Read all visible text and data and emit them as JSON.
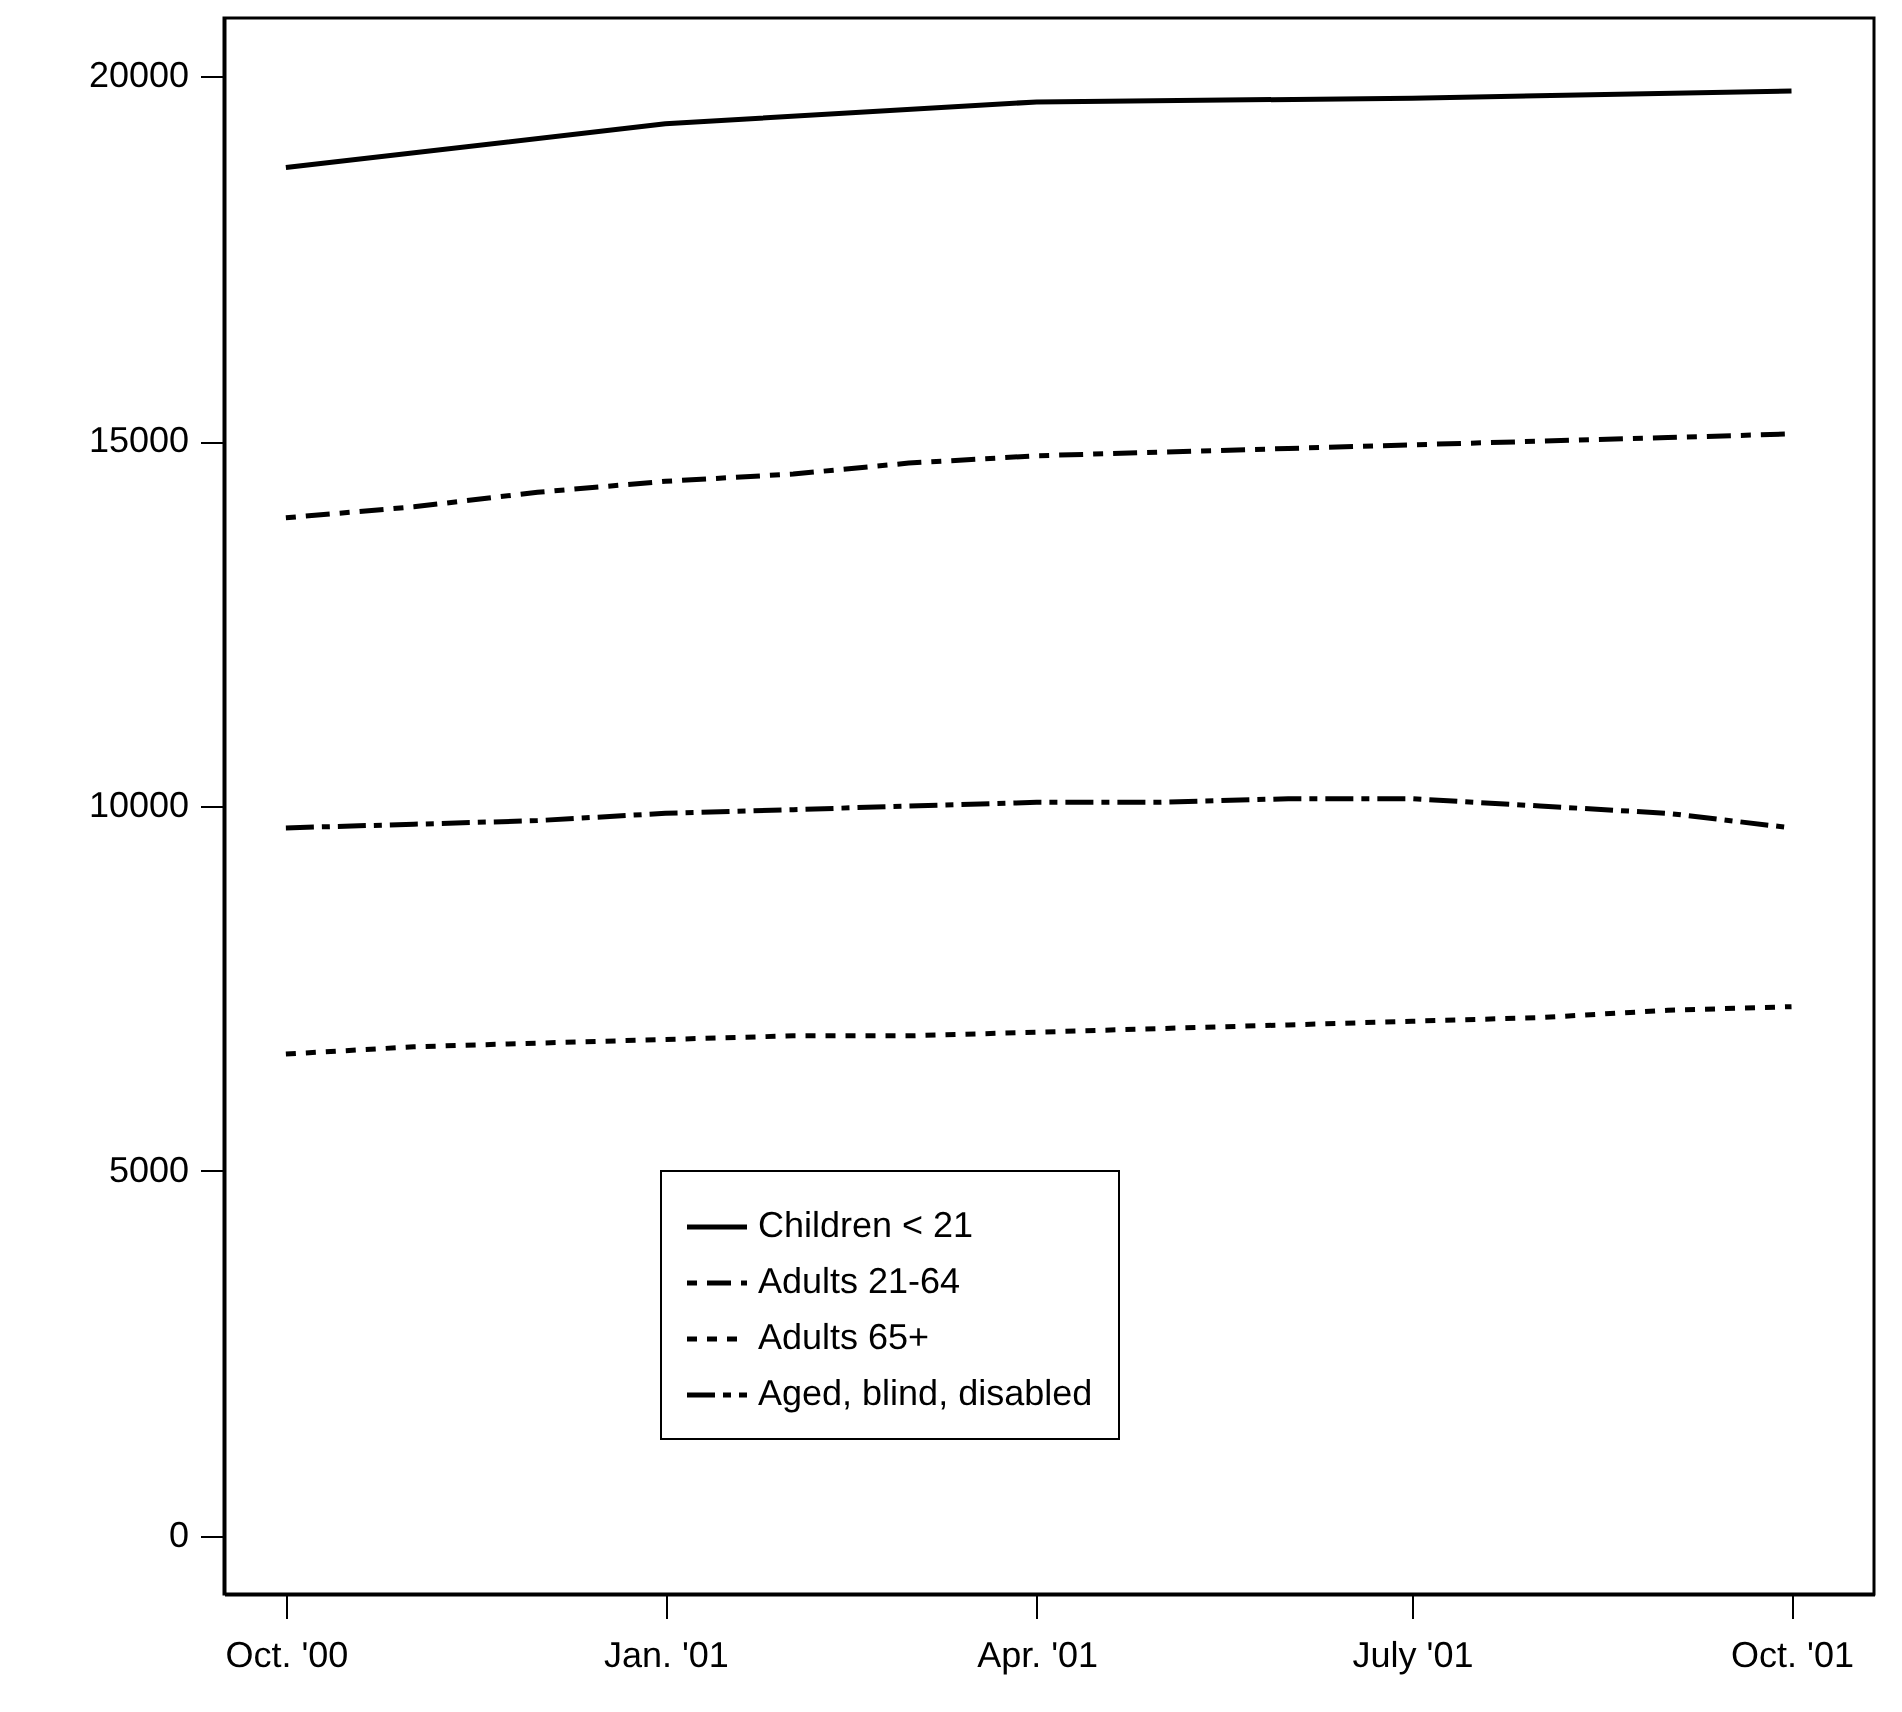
{
  "chart_data": {
    "type": "line",
    "x": [
      "2000-10",
      "2000-11",
      "2000-12",
      "2001-01",
      "2001-02",
      "2001-03",
      "2001-04",
      "2001-05",
      "2001-06",
      "2001-07",
      "2001-08",
      "2001-09",
      "2001-10"
    ],
    "series": [
      {
        "name": "Children < 21",
        "color": "#000000",
        "line_style": "solid",
        "x": [
          "2000-10",
          "2001-01",
          "2001-04",
          "2001-07",
          "2001-10"
        ],
        "values": [
          18750,
          19350,
          19650,
          19700,
          19800
        ]
      },
      {
        "name": "Adults 21-64",
        "color": "#000000",
        "line_style": "dashdot",
        "values": [
          13950,
          14100,
          14300,
          14450,
          14550,
          14700,
          14800,
          14850,
          14900,
          14950,
          15000,
          15050,
          15100
        ]
      },
      {
        "name": "Adults 65+",
        "color": "#000000",
        "line_style": "dotted",
        "values": [
          6600,
          6700,
          6750,
          6800,
          6850,
          6850,
          6900,
          6950,
          7000,
          7050,
          7100,
          7200,
          7250
        ]
      },
      {
        "name": "Aged, blind, disabled",
        "color": "#000000",
        "line_style": "dashed",
        "values": [
          9700,
          9750,
          9800,
          9900,
          9950,
          10000,
          10050,
          10050,
          10100,
          10100,
          10000,
          9900,
          9700
        ]
      }
    ],
    "xlim": [
      "2000-09-16",
      "2001-10-21"
    ],
    "xticks": [
      {
        "value": "2000-10",
        "label": "Oct. '00"
      },
      {
        "value": "2001-01",
        "label": "Jan. '01"
      },
      {
        "value": "2001-04",
        "label": "Apr. '01"
      },
      {
        "value": "2001-07",
        "label": "July '01"
      },
      {
        "value": "2001-10",
        "label": "Oct. '01"
      }
    ],
    "ylim": [
      -800,
      20800
    ],
    "yticks": [
      0,
      5000,
      10000,
      15000,
      20000
    ],
    "grid": false,
    "legend": "bottom",
    "marker": "none"
  }
}
